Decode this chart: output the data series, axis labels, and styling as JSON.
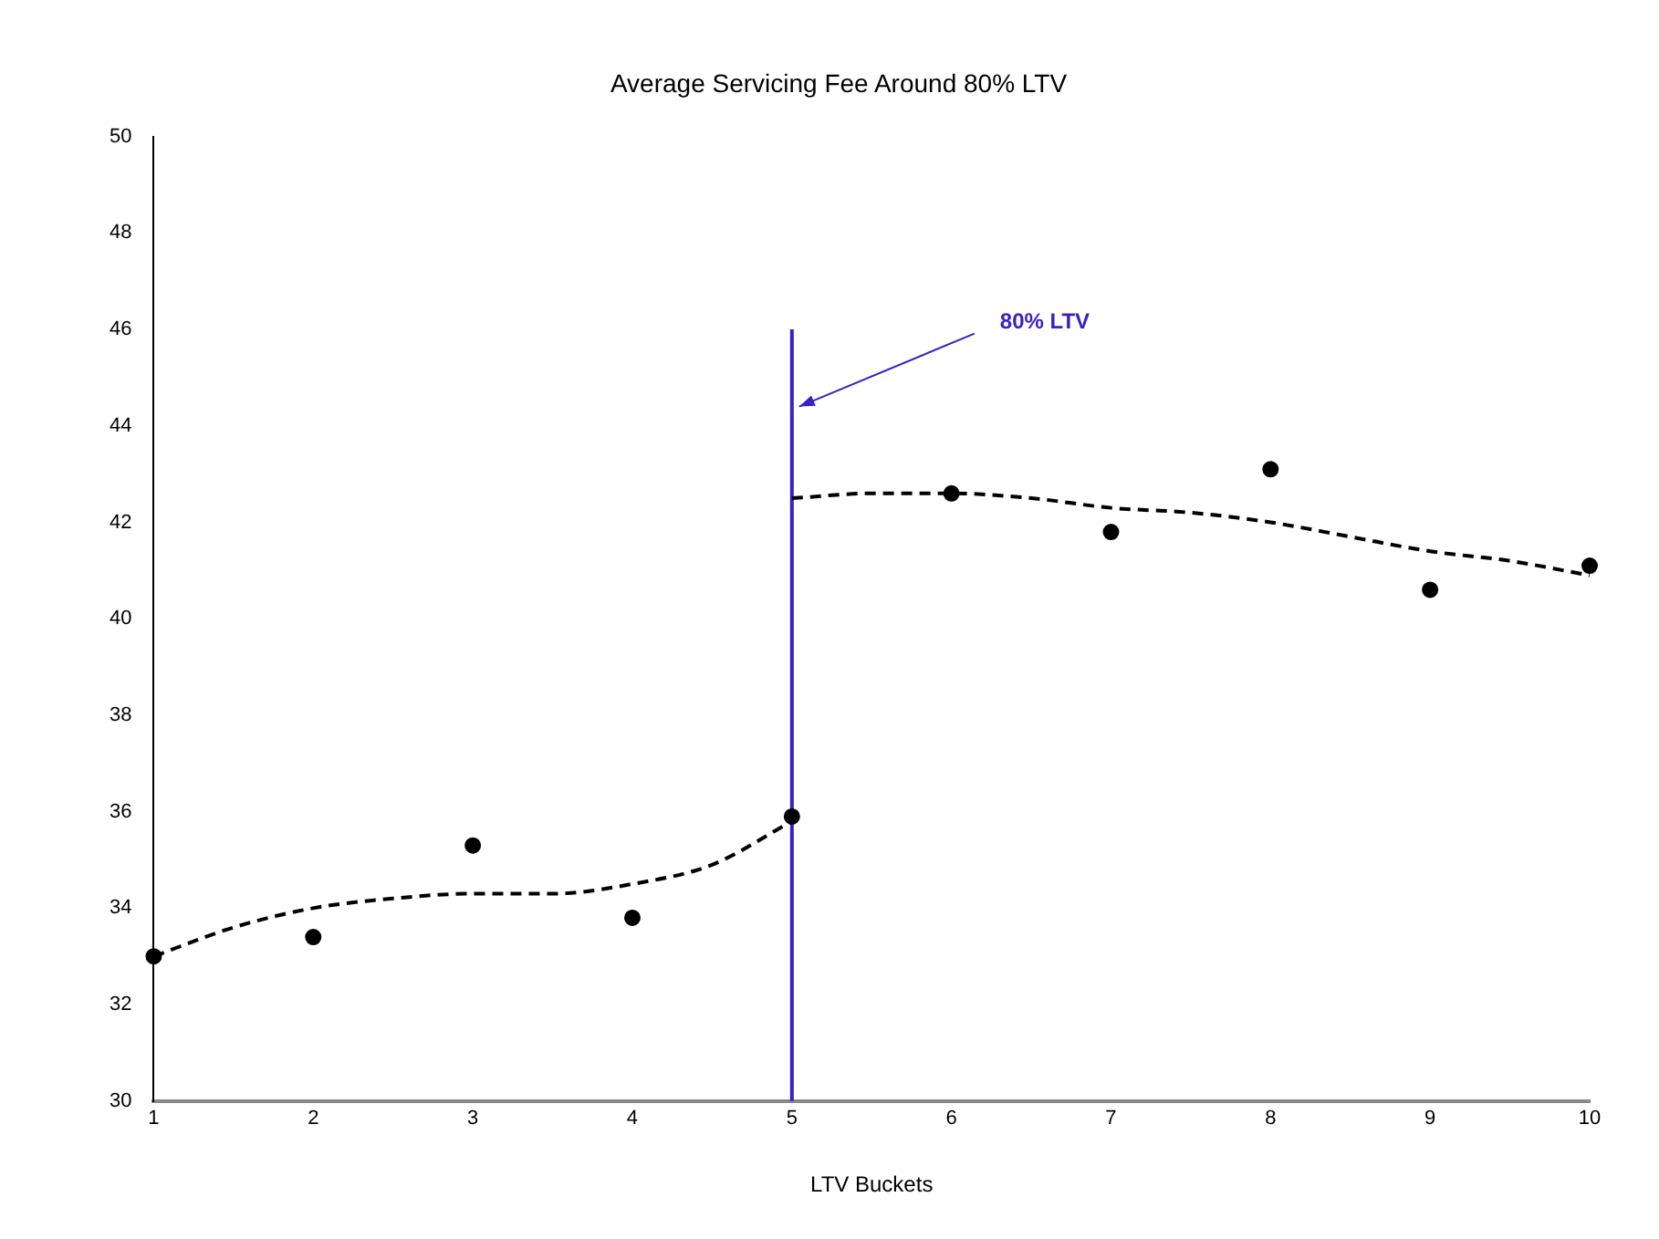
{
  "chart_data": {
    "type": "scatter",
    "title": "Average Servicing Fee Around 80% LTV",
    "xlabel": "LTV Buckets",
    "x": [
      1,
      2,
      3,
      4,
      5,
      6,
      7,
      8,
      9,
      10
    ],
    "xlim": [
      1,
      10
    ],
    "xticks": [
      1,
      2,
      3,
      4,
      5,
      6,
      7,
      8,
      9,
      10
    ],
    "ylim": [
      30,
      50
    ],
    "yticks": [
      30,
      32,
      34,
      36,
      38,
      40,
      42,
      44,
      46,
      48,
      50
    ],
    "grid": false,
    "legend": false,
    "series": [
      {
        "color": "#000000",
        "marker": "circle",
        "values": [
          33.0,
          33.4,
          35.3,
          33.8,
          35.9,
          42.6,
          41.8,
          43.1,
          40.6,
          41.1
        ]
      },
      {
        "type": "line",
        "color": "#000000",
        "line_style": "dashed",
        "marker": "none",
        "x": [
          1,
          1.5,
          2,
          2.5,
          3,
          3.5,
          4,
          4.5,
          5
        ],
        "values": [
          33.0,
          33.6,
          34.0,
          34.2,
          34.3,
          34.3,
          34.5,
          34.9,
          35.8
        ]
      },
      {
        "type": "line",
        "color": "#000000",
        "line_style": "dashed",
        "marker": "none",
        "x": [
          5,
          5.5,
          6,
          6.5,
          7,
          7.5,
          8,
          8.5,
          9,
          9.5,
          10
        ],
        "values": [
          42.5,
          42.6,
          42.6,
          42.5,
          42.3,
          42.2,
          42.0,
          41.7,
          41.4,
          41.2,
          40.9
        ]
      },
      {
        "type": "line",
        "color": "#3a1fc8",
        "line_style": "solid",
        "marker": "none",
        "x": [
          5,
          5
        ],
        "values": [
          30,
          46
        ]
      }
    ],
    "annotations": [
      {
        "text": "80% LTV",
        "x": 5,
        "y": 44.4
      }
    ]
  }
}
